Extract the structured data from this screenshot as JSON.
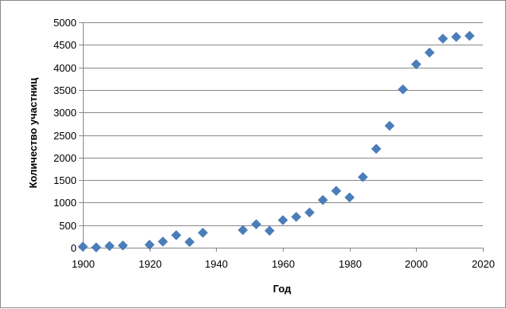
{
  "chart_data": {
    "type": "scatter",
    "title": "",
    "xlabel": "Год",
    "ylabel": "Количество участниц",
    "xlim": [
      1900,
      2020
    ],
    "ylim": [
      0,
      5000
    ],
    "xticks": [
      1900,
      1920,
      1940,
      1960,
      1980,
      2000,
      2020
    ],
    "yticks": [
      0,
      500,
      1000,
      1500,
      2000,
      2500,
      3000,
      3500,
      4000,
      4500,
      5000
    ],
    "grid": "horizontal",
    "legend": "none",
    "marker": "diamond",
    "marker_color": "#4a7ebb",
    "series": [
      {
        "x": [
          1900,
          1904,
          1908,
          1912,
          1920,
          1924,
          1928,
          1932,
          1936,
          1948,
          1952,
          1956,
          1960,
          1964,
          1968,
          1972,
          1976,
          1980,
          1984,
          1988,
          1992,
          1996,
          2000,
          2004,
          2008,
          2012,
          2016
        ],
        "y": [
          22,
          6,
          37,
          48,
          65,
          135,
          277,
          126,
          331,
          390,
          519,
          376,
          611,
          683,
          781,
          1058,
          1260,
          1115,
          1566,
          2194,
          2704,
          3512,
          4069,
          4329,
          4637,
          4676,
          4700
        ]
      }
    ]
  }
}
